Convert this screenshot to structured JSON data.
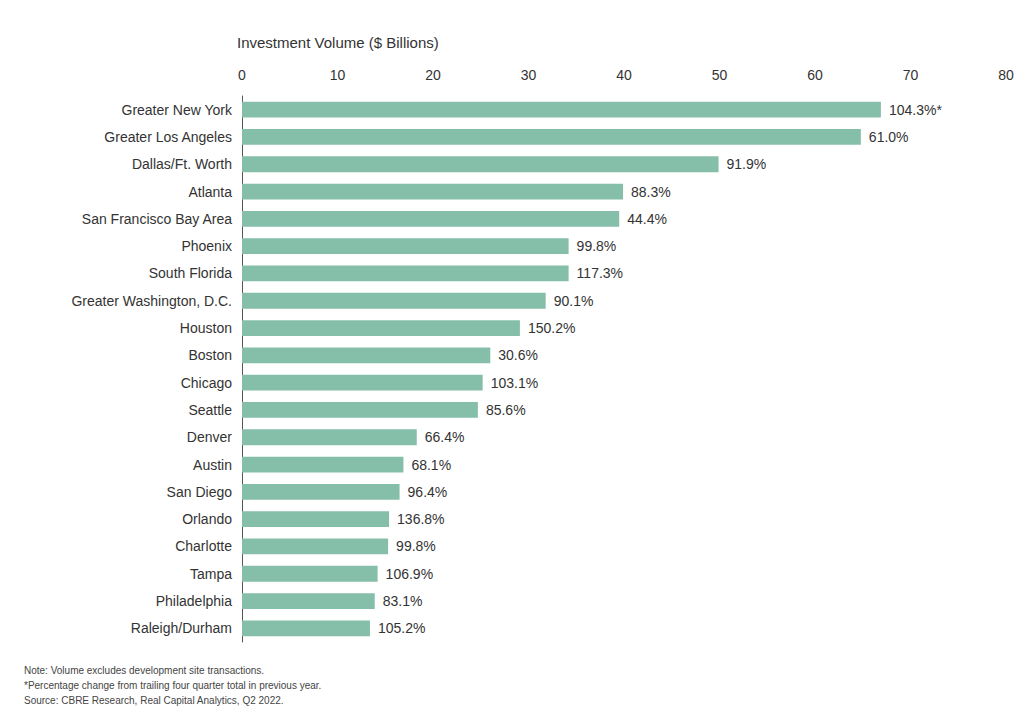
{
  "chart_data": {
    "type": "bar",
    "orientation": "horizontal",
    "xlabel": "Investment Volume ($ Billions)",
    "categories": [
      "Greater New York",
      "Greater Los Angeles",
      "Dallas/Ft. Worth",
      "Atlanta",
      "San Francisco Bay Area",
      "Phoenix",
      "South Florida",
      "Greater Washington, D.C.",
      "Houston",
      "Boston",
      "Chicago",
      "Seattle",
      "Denver",
      "Austin",
      "San Diego",
      "Orlando",
      "Charlotte",
      "Tampa",
      "Philadelphia",
      "Raleigh/Durham"
    ],
    "values": [
      66.9,
      64.8,
      49.9,
      39.9,
      39.5,
      34.2,
      34.2,
      31.8,
      29.1,
      26.0,
      25.2,
      24.7,
      18.3,
      16.9,
      16.5,
      15.4,
      15.3,
      14.2,
      13.9,
      13.4
    ],
    "bar_labels": [
      "104.3%*",
      "61.0%",
      "91.9%",
      "88.3%",
      "44.4%",
      "99.8%",
      "117.3%",
      "90.1%",
      "150.2%",
      "30.6%",
      "103.1%",
      "85.6%",
      "66.4%",
      "68.1%",
      "96.4%",
      "136.8%",
      "99.8%",
      "106.9%",
      "83.1%",
      "105.2%"
    ],
    "color": "#86bfa9",
    "xlim": [
      0,
      80
    ],
    "xticks": [
      0,
      10,
      20,
      30,
      40,
      50,
      60,
      70,
      80
    ],
    "grid": false,
    "notes": [
      "Note: Volume excludes development site transactions.",
      "*Percentage change from trailing four quarter total in previous year.",
      "Source: CBRE Research, Real Capital Analytics, Q2 2022."
    ]
  }
}
